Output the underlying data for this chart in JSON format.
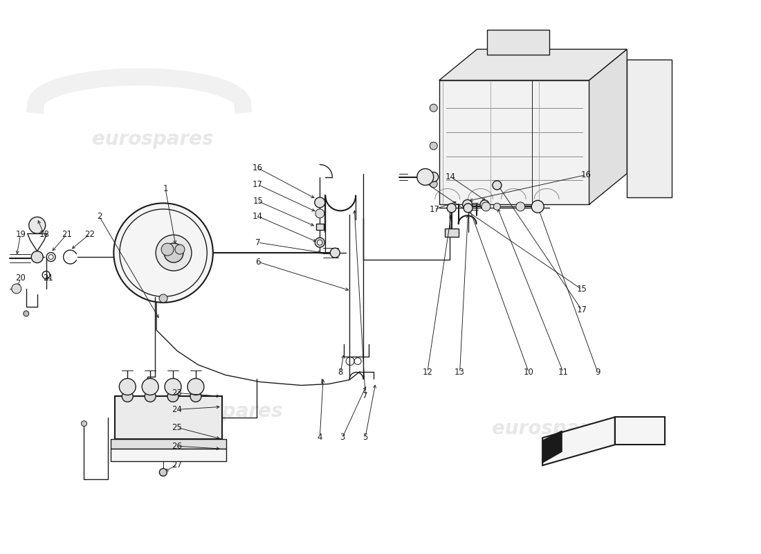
{
  "bg_color": "#ffffff",
  "line_color": "#1a1a1a",
  "gray_fill": "#d8d8d8",
  "light_fill": "#f0f0f0",
  "watermark_color": "#cccccc",
  "watermark_alpha": 0.45,
  "fig_width": 11.0,
  "fig_height": 8.0,
  "dpi": 100,
  "xlim": [
    0,
    11
  ],
  "ylim": [
    0,
    8
  ]
}
